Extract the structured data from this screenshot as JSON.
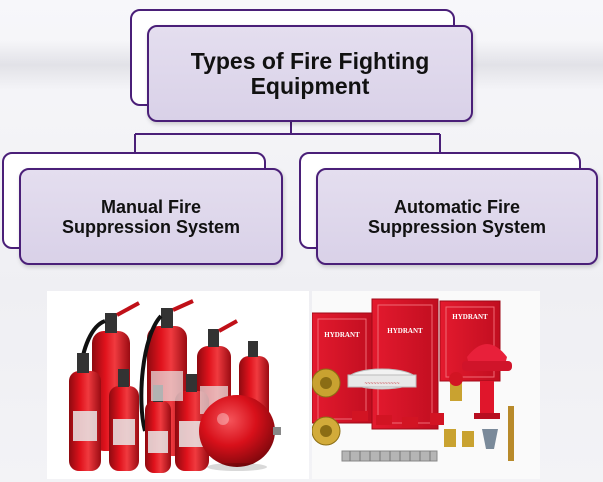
{
  "diagram": {
    "title": "Types of Fire Fighting\nEquipment",
    "children": [
      {
        "label": "Manual Fire\nSuppression System"
      },
      {
        "label": "Automatic Fire\nSuppression System"
      }
    ]
  },
  "photos": {
    "manual": {
      "icon": "fire-extinguishers-photo"
    },
    "automatic": {
      "icon": "hydrant-equipment-photo",
      "cabinet_labels": [
        "HYDRANT",
        "HYDRANT",
        "HYDRANT"
      ]
    }
  },
  "colors": {
    "node_border": "#4a1f78",
    "node_fill": "#dcd4ea",
    "extinguisher_red": "#d8101a",
    "hydrant_red": "#e0162b"
  }
}
